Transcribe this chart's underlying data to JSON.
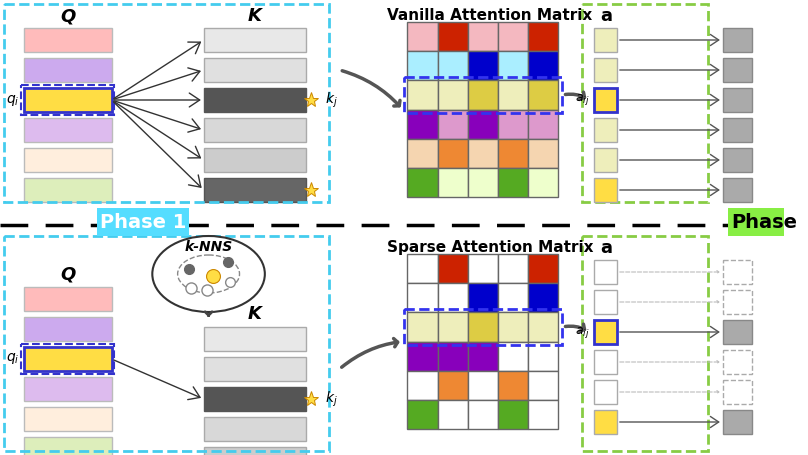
{
  "title_vanilla": "Vanilla Attention Matrix",
  "title_sparse": "Sparse Attention Matrix",
  "phase1_label": "Phase 1",
  "phase2_label": "Phase",
  "phase1_color": "#55ddff",
  "phase2_color": "#88ee44",
  "bg_color": "#ffffff",
  "cyan_dash_color": "#44ccee",
  "green_dash_color": "#88cc44",
  "vanilla_matrix": [
    [
      "#f4b8c0",
      "#cc2200",
      "#f4b8c0",
      "#f4b8c0",
      "#cc2200"
    ],
    [
      "#aaeeff",
      "#aaeeff",
      "#0000cc",
      "#aaeeff",
      "#0000cc"
    ],
    [
      "#eeeebb",
      "#eeeebb",
      "#ddcc44",
      "#eeeebb",
      "#ddcc44"
    ],
    [
      "#8800bb",
      "#dd99cc",
      "#8800bb",
      "#dd99cc",
      "#dd99cc"
    ],
    [
      "#f5d5b0",
      "#ee8833",
      "#f5d5b0",
      "#ee8833",
      "#f5d5b0"
    ],
    [
      "#55aa22",
      "#eeffcc",
      "#eeffcc",
      "#55aa22",
      "#eeffcc"
    ]
  ],
  "sparse_matrix": [
    [
      "white",
      "#cc2200",
      "white",
      "white",
      "#cc2200"
    ],
    [
      "white",
      "white",
      "#0000cc",
      "white",
      "#0000cc"
    ],
    [
      "#eeeebb",
      "#eeeebb",
      "#ddcc44",
      "#eeeebb",
      "#eeeebb"
    ],
    [
      "#8800bb",
      "#8800bb",
      "#8800bb",
      "white",
      "white"
    ],
    [
      "white",
      "#ee8833",
      "white",
      "#ee8833",
      "white"
    ],
    [
      "#55aa22",
      "white",
      "white",
      "#55aa22",
      "white"
    ]
  ],
  "q_colors": [
    "#ffbbbb",
    "#ccaaee",
    "#ffdd44",
    "#ddbbee",
    "#ffeedd",
    "#ddeebb"
  ],
  "k_colors": [
    "#e8e8e8",
    "#e0e0e0",
    "#555555",
    "#d8d8d8",
    "#cccccc",
    "#666666"
  ],
  "a_colors_top": [
    "#eeeebb",
    "#eeeebb",
    "#ffdd44",
    "#eeeebb",
    "#eeeebb",
    "#ffdd44"
  ],
  "a_colors_bot": [
    "#ffffff",
    "#ffffff",
    "#ffdd44",
    "#ffffff",
    "#ffffff",
    "#ffdd44"
  ],
  "v_color": "#aaaaaa"
}
